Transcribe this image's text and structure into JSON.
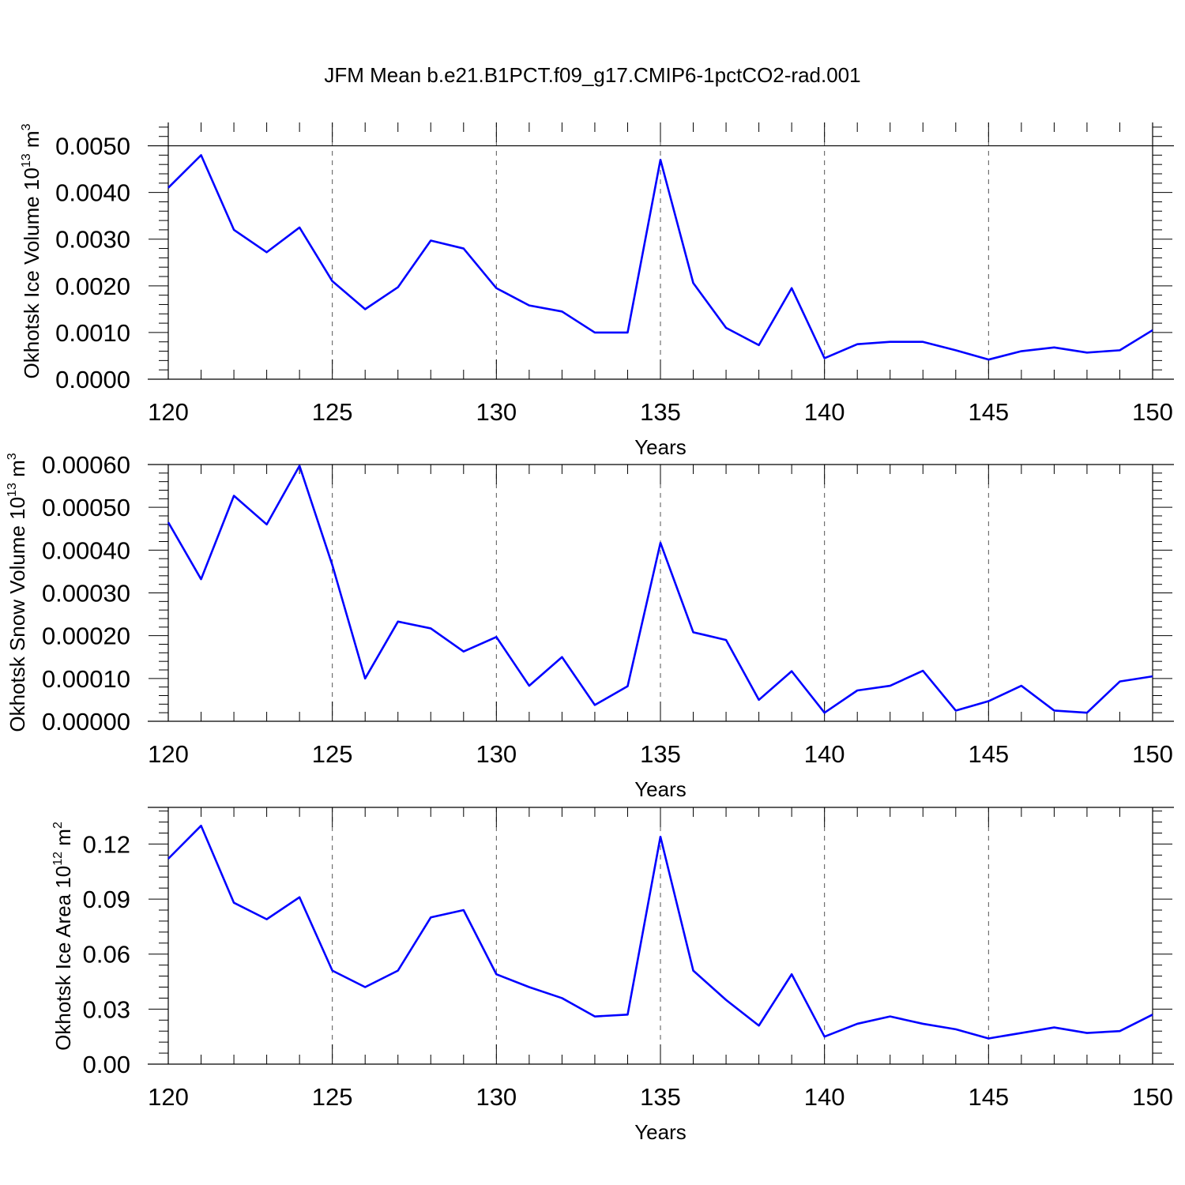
{
  "title": "JFM Mean b.e21.B1PCT.f09_g17.CMIP6-1pctCO2-rad.001",
  "line_color": "#0000ff",
  "chart_data": [
    {
      "type": "line",
      "xlabel": "Years",
      "ylabel": {
        "main": "Okhotsk Ice Volume 10",
        "sup": "13",
        "unit": " m",
        "unit_sup": "3"
      },
      "xlim": [
        120,
        150
      ],
      "ylim": [
        0,
        0.0055
      ],
      "xticks": [
        120,
        125,
        130,
        135,
        140,
        145,
        150
      ],
      "xtick_labels": [
        "120",
        "125",
        "130",
        "135",
        "140",
        "145",
        "150"
      ],
      "yticks": [
        0,
        0.001,
        0.002,
        0.003,
        0.004,
        0.005
      ],
      "ytick_labels": [
        "0.0000",
        "0.0010",
        "0.0020",
        "0.0030",
        "0.0040",
        "0.0050"
      ],
      "grid": "vertical dashed at major x ticks",
      "x": [
        120,
        121,
        122,
        123,
        124,
        125,
        126,
        127,
        128,
        129,
        130,
        131,
        132,
        133,
        134,
        135,
        136,
        137,
        138,
        139,
        140,
        141,
        142,
        143,
        144,
        145,
        146,
        147,
        148,
        149,
        150
      ],
      "series": [
        {
          "values": [
            0.0041,
            0.0048,
            0.0032,
            0.00272,
            0.00325,
            0.0021,
            0.0015,
            0.00197,
            0.00297,
            0.0028,
            0.00195,
            0.00158,
            0.00145,
            0.001,
            0.001,
            0.0047,
            0.00206,
            0.0011,
            0.00073,
            0.00195,
            0.00045,
            0.00075,
            0.0008,
            0.0008,
            0.00062,
            0.00042,
            0.0006,
            0.00068,
            0.00057,
            0.00062,
            0.00105
          ]
        }
      ]
    },
    {
      "type": "line",
      "xlabel": "Years",
      "ylabel": {
        "main": "Okhotsk Snow Volume 10",
        "sup": "13",
        "unit": " m",
        "unit_sup": "3"
      },
      "xlim": [
        120,
        150
      ],
      "ylim": [
        0,
        0.0006
      ],
      "xticks": [
        120,
        125,
        130,
        135,
        140,
        145,
        150
      ],
      "xtick_labels": [
        "120",
        "125",
        "130",
        "135",
        "140",
        "145",
        "150"
      ],
      "yticks": [
        0,
        0.0001,
        0.0002,
        0.0003,
        0.0004,
        0.0005,
        0.0006
      ],
      "ytick_labels": [
        "0.00000",
        "0.00010",
        "0.00020",
        "0.00030",
        "0.00040",
        "0.00050",
        "0.00060"
      ],
      "grid": "vertical dashed at major x ticks",
      "x": [
        120,
        121,
        122,
        123,
        124,
        125,
        126,
        127,
        128,
        129,
        130,
        131,
        132,
        133,
        134,
        135,
        136,
        137,
        138,
        139,
        140,
        141,
        142,
        143,
        144,
        145,
        146,
        147,
        148,
        149,
        150
      ],
      "series": [
        {
          "values": [
            0.000465,
            0.000332,
            0.000527,
            0.00046,
            0.000597,
            0.000365,
            0.0001,
            0.000233,
            0.000217,
            0.000163,
            0.000197,
            8.3e-05,
            0.00015,
            3.8e-05,
            8.2e-05,
            0.000417,
            0.000208,
            0.00019,
            5e-05,
            0.000117,
            2e-05,
            7.2e-05,
            8.3e-05,
            0.000118,
            2.5e-05,
            4.7e-05,
            8.3e-05,
            2.5e-05,
            2e-05,
            9.3e-05,
            0.000105
          ]
        }
      ]
    },
    {
      "type": "line",
      "xlabel": "Years",
      "ylabel": {
        "main": "Okhotsk Ice Area 10",
        "sup": "12",
        "unit": " m",
        "unit_sup": "2"
      },
      "xlim": [
        120,
        150
      ],
      "ylim": [
        0,
        0.14
      ],
      "xticks": [
        120,
        125,
        130,
        135,
        140,
        145,
        150
      ],
      "xtick_labels": [
        "120",
        "125",
        "130",
        "135",
        "140",
        "145",
        "150"
      ],
      "yticks": [
        0,
        0.03,
        0.06,
        0.09,
        0.12
      ],
      "ytick_labels": [
        "0.00",
        "0.03",
        "0.06",
        "0.09",
        "0.12"
      ],
      "grid": "vertical dashed at major x ticks",
      "x": [
        120,
        121,
        122,
        123,
        124,
        125,
        126,
        127,
        128,
        129,
        130,
        131,
        132,
        133,
        134,
        135,
        136,
        137,
        138,
        139,
        140,
        141,
        142,
        143,
        144,
        145,
        146,
        147,
        148,
        149,
        150
      ],
      "series": [
        {
          "values": [
            0.112,
            0.13,
            0.088,
            0.079,
            0.091,
            0.051,
            0.042,
            0.051,
            0.08,
            0.084,
            0.049,
            0.042,
            0.036,
            0.026,
            0.027,
            0.124,
            0.051,
            0.035,
            0.021,
            0.049,
            0.015,
            0.022,
            0.026,
            0.022,
            0.019,
            0.014,
            0.017,
            0.02,
            0.017,
            0.018,
            0.027
          ]
        }
      ]
    }
  ]
}
